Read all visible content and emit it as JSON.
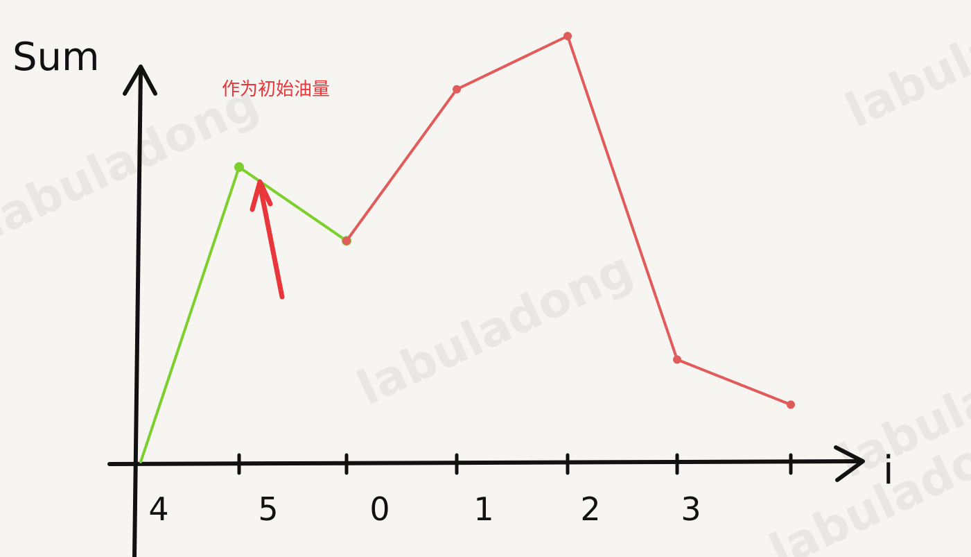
{
  "chart_data": {
    "type": "line",
    "title": "",
    "xlabel": "i",
    "ylabel": "Sum",
    "categories": [
      "4",
      "5",
      "0",
      "1",
      "2",
      "3"
    ],
    "y_scale": "arbitrary",
    "grid": false,
    "legend": "none",
    "series": [
      {
        "color": "#7ccf2c",
        "points": [
          {
            "x": "4",
            "y": 0
          },
          {
            "x": "5",
            "y": 7.2
          },
          {
            "x": "0",
            "y": 5.4
          }
        ]
      },
      {
        "color": "#e15b5b",
        "points": [
          {
            "x": "0",
            "y": 5.4
          },
          {
            "x": "1",
            "y": 9.1
          },
          {
            "x": "2",
            "y": 10.4
          },
          {
            "x": "3",
            "y": 2.5
          },
          {
            "x": "3+",
            "y": 1.4
          }
        ]
      }
    ],
    "annotations": [
      {
        "text": "作为初始油量",
        "color": "#e8363a",
        "target": "5"
      }
    ]
  },
  "watermarks": [
    "labuladong",
    "labuladong",
    "labuladong",
    "labuladong",
    "labuladong"
  ],
  "colors": {
    "axis": "#111111",
    "background": "#f6f5f1"
  }
}
